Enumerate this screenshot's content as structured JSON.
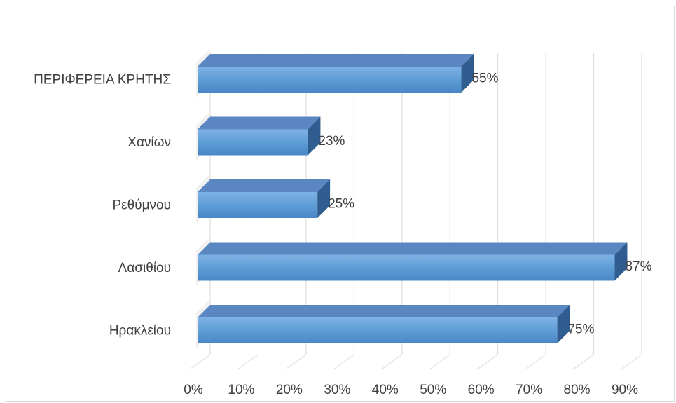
{
  "chart_data": {
    "type": "bar",
    "orientation": "horizontal",
    "style": "3d",
    "categories": [
      "ΠΕΡΙΦΕΡΕΙΑ ΚΡΗΤΗΣ",
      "Χανίων",
      "Ρεθύμνου",
      "Λασιθίου",
      "Ηρακλείου"
    ],
    "values": [
      55,
      23,
      25,
      87,
      75
    ],
    "data_labels": [
      "55%",
      "23%",
      "25%",
      "87%",
      "75%"
    ],
    "x_ticks": [
      "0%",
      "10%",
      "20%",
      "30%",
      "40%",
      "50%",
      "60%",
      "70%",
      "80%",
      "90%"
    ],
    "xlim": [
      0,
      90
    ],
    "grid": true,
    "legend": "none",
    "title": "",
    "xlabel": "",
    "ylabel": "",
    "colors": {
      "bar_front": "#5b9bd5",
      "bar_top": "#5a87c2",
      "bar_side": "#2f5d8f",
      "grid": "#d9d9d9"
    }
  }
}
